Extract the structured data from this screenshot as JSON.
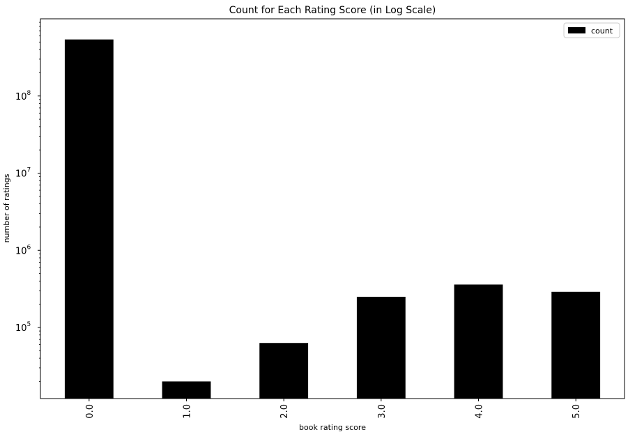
{
  "chart_data": {
    "type": "bar",
    "title": "Count for Each Rating Score (in Log Scale)",
    "xlabel": "book rating score",
    "ylabel": "number of ratings",
    "yscale": "log",
    "ylim": [
      12000,
      1000000000
    ],
    "categories": [
      "0.0",
      "1.0",
      "2.0",
      "3.0",
      "4.0",
      "5.0"
    ],
    "series": [
      {
        "name": "count",
        "values": [
          540000000,
          20000,
          63000,
          250000,
          360000,
          290000
        ]
      }
    ],
    "y_ticks": [
      {
        "base": "10",
        "exp": "5",
        "value": 100000
      },
      {
        "base": "10",
        "exp": "6",
        "value": 1000000
      },
      {
        "base": "10",
        "exp": "7",
        "value": 10000000
      },
      {
        "base": "10",
        "exp": "8",
        "value": 100000000
      }
    ],
    "bar_color": "#000000",
    "legend_position": "top-right",
    "grid": false
  }
}
